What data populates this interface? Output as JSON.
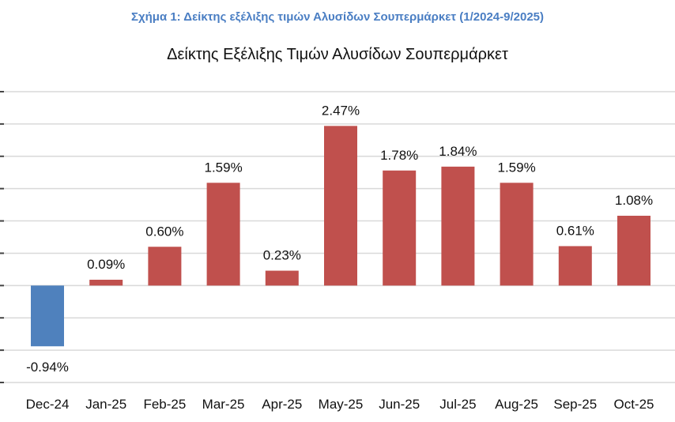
{
  "figure_caption": "Σχήμα 1: Δείκτης εξέλιξης τιμών Αλυσίδων Σουπερμάρκετ (1/2024-9/2025)",
  "chart_data": {
    "type": "bar",
    "title": "Δείκτης Εξέλιξης Τιμών Αλυσίδων Σουπερμάρκετ",
    "xlabel": "",
    "ylabel": "",
    "categories": [
      "Dec-24",
      "Jan-25",
      "Feb-25",
      "Mar-25",
      "Apr-25",
      "May-25",
      "Jun-25",
      "Jul-25",
      "Aug-25",
      "Sep-25",
      "Oct-25"
    ],
    "values": [
      -0.94,
      0.09,
      0.6,
      1.59,
      0.23,
      2.47,
      1.78,
      1.84,
      1.59,
      0.61,
      1.08
    ],
    "data_labels": [
      "-0.94%",
      "0.09%",
      "0.60%",
      "1.59%",
      "0.23%",
      "2.47%",
      "1.78%",
      "1.84%",
      "1.59%",
      "0.61%",
      "1.08%"
    ],
    "ylim": [
      -1.5,
      3.0
    ],
    "grid": true,
    "legend": "none",
    "colors": {
      "positive": "#c0504d",
      "negative": "#4f81bd",
      "grid": "#d9d9d9"
    }
  }
}
